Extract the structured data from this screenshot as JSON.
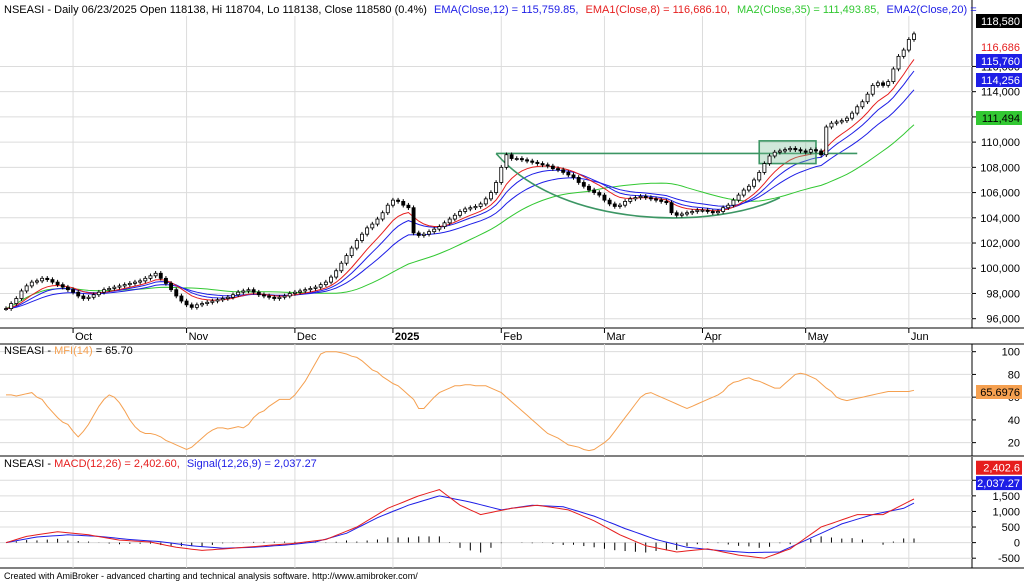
{
  "header": {
    "main": {
      "prefix": "NSEASI - Daily 06/23/2025 Open 118138, Hi 118704, Lo 118138, Close 118580 (0.4%)",
      "ema12": "EMA(Close,12) = 115,759.85,",
      "ema8": "EMA1(Close,8) = 116,686.10,",
      "ma35": "MA2(Close,35) = 111,493.85,",
      "ema20": "EMA2(Close,20) ="
    },
    "mfi": {
      "prefix": "NSEASI - ",
      "label": "MFI(14)",
      "value": " = 65.70"
    },
    "macd": {
      "prefix": "NSEASI - ",
      "macd": "MACD(12,26) = 2,402.60,",
      "signal": "Signal(12,26,9) = 2,037.27"
    }
  },
  "footer": "Created with AmiBroker - advanced charting and technical analysis software. http://www.amibroker.com/",
  "colors": {
    "ema12": "#1e1ee6",
    "ema8": "#e61e1e",
    "ma35": "#32c832",
    "ema20": "#1e1ee6",
    "mfi": "#f5a050",
    "macd": "#e61e1e",
    "signal": "#1e1ee6",
    "pattern": "#3c9664",
    "grid": "#dcdcdc"
  },
  "chart_data": [
    {
      "type": "candlestick",
      "title": "NSEASI - Daily 06/23/2025",
      "ylim": [
        95500,
        120000
      ],
      "yticks": [
        96000,
        98000,
        100000,
        102000,
        104000,
        106000,
        108000,
        110000,
        112000,
        114000,
        116000
      ],
      "ytick_labels": [
        "96,000",
        "98,000",
        "100,000",
        "102,000",
        "104,000",
        "106,000",
        "108,000",
        "110,000",
        "112,000",
        "114,000",
        "116,000"
      ],
      "xticks": [
        {
          "index": 13,
          "label": "Oct"
        },
        {
          "index": 35,
          "label": "Nov"
        },
        {
          "index": 56,
          "label": "Dec"
        },
        {
          "index": 75,
          "label": "2025"
        },
        {
          "index": 96,
          "label": "Feb"
        },
        {
          "index": 116,
          "label": "Mar"
        },
        {
          "index": 135,
          "label": "Apr"
        },
        {
          "index": 155,
          "label": "May"
        },
        {
          "index": 175,
          "label": "Jun"
        }
      ],
      "closes": [
        96800,
        97200,
        97600,
        98200,
        98600,
        98900,
        99000,
        99200,
        99100,
        98900,
        98700,
        98500,
        98300,
        98100,
        97800,
        97600,
        97700,
        97900,
        98100,
        98300,
        98400,
        98500,
        98600,
        98700,
        98800,
        98900,
        99000,
        99200,
        99400,
        99600,
        99200,
        98800,
        98300,
        97800,
        97400,
        97100,
        96900,
        97100,
        97200,
        97300,
        97400,
        97500,
        97600,
        97700,
        97900,
        98100,
        98200,
        98300,
        98100,
        97900,
        97800,
        97700,
        97600,
        97700,
        97800,
        98000,
        98100,
        98200,
        98300,
        98400,
        98500,
        98700,
        98900,
        99300,
        99800,
        100400,
        101000,
        101600,
        102200,
        102700,
        103200,
        103500,
        103900,
        104400,
        105000,
        105400,
        105300,
        105000,
        104800,
        102800,
        102600,
        102700,
        102900,
        103100,
        103300,
        103600,
        103900,
        104200,
        104500,
        104700,
        104800,
        104900,
        105100,
        105500,
        106000,
        106800,
        108000,
        109000,
        108700,
        108700,
        108600,
        108500,
        108400,
        108300,
        108200,
        108100,
        107900,
        107800,
        107600,
        107400,
        107200,
        106800,
        106500,
        106200,
        106000,
        105800,
        105400,
        105100,
        104900,
        105000,
        105300,
        105500,
        105600,
        105700,
        105600,
        105500,
        105400,
        105300,
        105200,
        104400,
        104200,
        104300,
        104400,
        104500,
        104600,
        104600,
        104500,
        104400,
        104500,
        104800,
        105000,
        105400,
        105800,
        106200,
        106500,
        107000,
        107600,
        108300,
        108900,
        109200,
        109300,
        109400,
        109500,
        109400,
        109300,
        109200,
        109400,
        109300,
        109000,
        111200,
        111500,
        111600,
        111700,
        111900,
        112300,
        112800,
        113200,
        113800,
        114500,
        114700,
        114500,
        114800,
        115800,
        116800,
        117300,
        118138,
        118580
      ],
      "high": 118704,
      "low": 118138,
      "overlays": [
        {
          "name": "EMA(Close,12)",
          "value": 115759.85
        },
        {
          "name": "EMA1(Close,8)",
          "value": 116686.1
        },
        {
          "name": "MA2(Close,35)",
          "value": 111493.85
        },
        {
          "name": "EMA2(Close,20)",
          "value": 114256
        }
      ],
      "badges": [
        {
          "label": "118,580",
          "value": 118580
        },
        {
          "label": "116,686",
          "value": 116686
        },
        {
          "label": "115,760",
          "value": 115760
        },
        {
          "label": "114,256",
          "value": 114256
        },
        {
          "label": "111,494",
          "value": 111494
        }
      ]
    },
    {
      "type": "line",
      "title": "MFI(14)",
      "ylim": [
        10,
        105
      ],
      "yticks": [
        20,
        40,
        60,
        80,
        100
      ],
      "ytick_labels": [
        "20",
        "40",
        "60",
        "80",
        "100"
      ],
      "values": [
        62,
        62,
        61,
        62,
        63,
        64,
        60,
        58,
        52,
        47,
        42,
        38,
        36,
        30,
        25,
        30,
        36,
        44,
        52,
        58,
        62,
        60,
        55,
        48,
        40,
        34,
        30,
        28,
        28,
        27,
        25,
        22,
        20,
        18,
        16,
        14,
        16,
        20,
        24,
        28,
        31,
        33,
        33,
        32,
        33,
        34,
        33,
        36,
        42,
        46,
        48,
        52,
        55,
        58,
        58,
        58,
        62,
        68,
        74,
        82,
        90,
        98,
        100,
        100,
        100,
        99,
        98,
        96,
        95,
        92,
        88,
        84,
        82,
        78,
        75,
        72,
        70,
        66,
        62,
        58,
        50,
        50,
        55,
        60,
        64,
        66,
        68,
        70,
        70,
        71,
        71,
        70,
        70,
        70,
        68,
        66,
        64,
        60,
        56,
        52,
        48,
        44,
        40,
        36,
        32,
        28,
        26,
        24,
        21,
        18,
        17,
        16,
        14,
        13,
        14,
        17,
        20,
        24,
        30,
        36,
        42,
        48,
        54,
        60,
        63,
        64,
        62,
        60,
        58,
        56,
        54,
        52,
        50,
        52,
        54,
        56,
        58,
        60,
        62,
        65,
        70,
        73,
        74,
        76,
        77,
        75,
        74,
        72,
        70,
        68,
        68,
        72,
        76,
        80,
        81,
        80,
        78,
        76,
        72,
        68,
        65,
        60,
        58,
        57,
        58,
        59,
        60,
        61,
        62,
        63,
        64,
        65,
        65,
        65,
        65,
        65,
        66
      ],
      "last_value": 65.7,
      "badge": "65.6976"
    },
    {
      "type": "line",
      "title": "MACD(12,26)",
      "ylim": [
        -750,
        2650
      ],
      "yticks": [
        -500,
        0,
        500,
        1000,
        1500,
        2000
      ],
      "ytick_labels": [
        "-500",
        "0",
        "500",
        "1,000",
        "1,500",
        "2,000"
      ],
      "series": [
        {
          "name": "MACD(12,26)",
          "last": 2402.6
        },
        {
          "name": "Signal(12,26,9)",
          "last": 2037.27
        }
      ],
      "macd_anchors": [
        [
          0,
          0
        ],
        [
          4,
          200
        ],
        [
          10,
          350
        ],
        [
          16,
          250
        ],
        [
          22,
          80
        ],
        [
          28,
          20
        ],
        [
          33,
          -150
        ],
        [
          38,
          -250
        ],
        [
          44,
          -180
        ],
        [
          50,
          -100
        ],
        [
          56,
          -20
        ],
        [
          62,
          100
        ],
        [
          68,
          500
        ],
        [
          74,
          1100
        ],
        [
          80,
          1500
        ],
        [
          84,
          1700
        ],
        [
          88,
          1200
        ],
        [
          92,
          900
        ],
        [
          98,
          1100
        ],
        [
          103,
          1200
        ],
        [
          109,
          1050
        ],
        [
          114,
          700
        ],
        [
          119,
          250
        ],
        [
          124,
          -100
        ],
        [
          130,
          -300
        ],
        [
          136,
          -200
        ],
        [
          142,
          -400
        ],
        [
          147,
          -500
        ],
        [
          152,
          -200
        ],
        [
          158,
          500
        ],
        [
          165,
          900
        ],
        [
          170,
          900
        ],
        [
          176,
          1400
        ],
        [
          182,
          2100
        ],
        [
          186,
          2402.6
        ]
      ],
      "signal_anchors": [
        [
          0,
          0
        ],
        [
          6,
          180
        ],
        [
          12,
          250
        ],
        [
          18,
          200
        ],
        [
          24,
          100
        ],
        [
          30,
          30
        ],
        [
          36,
          -100
        ],
        [
          42,
          -180
        ],
        [
          48,
          -150
        ],
        [
          54,
          -80
        ],
        [
          60,
          20
        ],
        [
          66,
          300
        ],
        [
          72,
          800
        ],
        [
          78,
          1200
        ],
        [
          84,
          1500
        ],
        [
          90,
          1300
        ],
        [
          96,
          1050
        ],
        [
          102,
          1200
        ],
        [
          108,
          1150
        ],
        [
          114,
          850
        ],
        [
          120,
          450
        ],
        [
          126,
          100
        ],
        [
          132,
          -150
        ],
        [
          138,
          -250
        ],
        [
          144,
          -320
        ],
        [
          150,
          -300
        ],
        [
          156,
          150
        ],
        [
          162,
          600
        ],
        [
          168,
          900
        ],
        [
          174,
          1100
        ],
        [
          180,
          1600
        ],
        [
          186,
          2037.27
        ]
      ],
      "badges": [
        {
          "label": "2,402.6",
          "value": 2402.6
        },
        {
          "label": "2,037.27",
          "value": 2037.27
        }
      ]
    }
  ]
}
